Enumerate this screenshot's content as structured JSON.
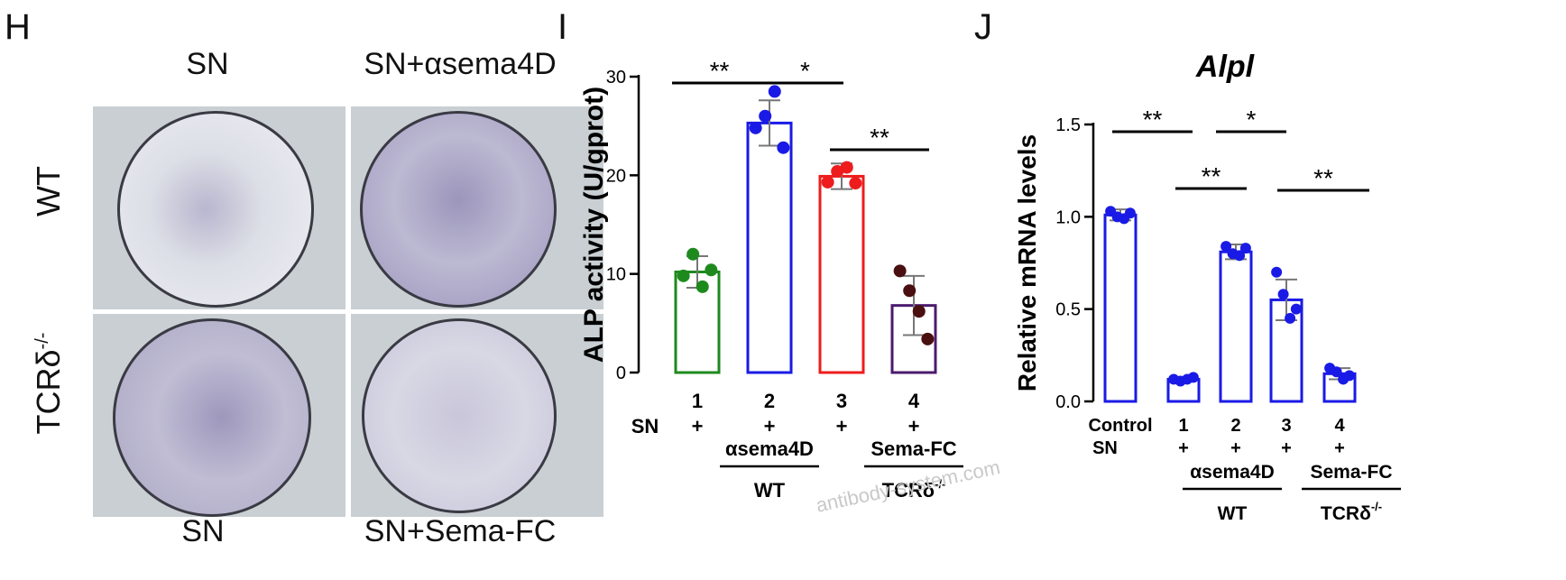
{
  "panel_h": {
    "letter": "H",
    "col_titles_top": [
      "SN",
      "SN+αsema4D"
    ],
    "col_titles_bottom": [
      "SN",
      "SN+Sema-FC"
    ],
    "row_labels": [
      "WT",
      "TCRδ",
      "-/-"
    ]
  },
  "panel_i": {
    "letter": "I"
  },
  "panel_j": {
    "letter": "J"
  },
  "watermark": "antibody-system.com",
  "colors": {
    "green": "#1e8a1e",
    "blue": "#1a1ae6",
    "red": "#ee1c1c",
    "brown": "#4a0f10",
    "purple": "#4b1a6e"
  },
  "chart_data": [
    {
      "id": "I",
      "type": "bar",
      "ylabel": "ALP activity (U/gprot)",
      "ylim": [
        0,
        30
      ],
      "yticks": [
        "0",
        "10",
        "20",
        "30"
      ],
      "categories": [
        "1",
        "2",
        "3",
        "4"
      ],
      "values": [
        10.2,
        25.3,
        19.9,
        6.8
      ],
      "errors": [
        1.6,
        2.3,
        1.3,
        3.0
      ],
      "points": [
        [
          9.8,
          12.0,
          8.7,
          10.4
        ],
        [
          24.8,
          26.0,
          28.5,
          22.8
        ],
        [
          19.3,
          20.4,
          20.8,
          19.2
        ],
        [
          10.3,
          8.3,
          6.2,
          3.4
        ]
      ],
      "bar_colors": [
        "#1e8a1e",
        "#1a1ae6",
        "#ee1c1c",
        "#4b1a6e"
      ],
      "point_colors": [
        "#1e8a1e",
        "#1a1ae6",
        "#ee1c1c",
        "#4a0f10"
      ],
      "sn_label": "SN",
      "sn_marks": [
        "+",
        "+",
        "+",
        "+"
      ],
      "group_labels": [
        {
          "top": "αsema4D",
          "bottom": "WT"
        },
        {
          "top": "Sema-FC",
          "bottom": "TCRδ",
          "sup": "-/-"
        }
      ],
      "significance": [
        {
          "from": 1,
          "to": 2,
          "label": "**"
        },
        {
          "from": 2,
          "to": 3,
          "label": "*"
        },
        {
          "from": 3,
          "to": 4,
          "label": "**"
        }
      ]
    },
    {
      "id": "J",
      "type": "bar",
      "title": "Alpl",
      "ylabel": "Relative mRNA levels",
      "ylim": [
        0,
        1.5
      ],
      "yticks": [
        "0.0",
        "0.5",
        "1.0",
        "1.5"
      ],
      "categories": [
        "Control",
        "1",
        "2",
        "3",
        "4"
      ],
      "values": [
        1.01,
        0.12,
        0.81,
        0.55,
        0.15
      ],
      "errors": [
        0.03,
        0.01,
        0.04,
        0.11,
        0.03
      ],
      "points": [
        [
          1.03,
          1.0,
          0.99,
          1.02
        ],
        [
          0.12,
          0.11,
          0.12,
          0.13
        ],
        [
          0.84,
          0.8,
          0.79,
          0.83
        ],
        [
          0.7,
          0.58,
          0.45,
          0.5
        ],
        [
          0.18,
          0.16,
          0.12,
          0.14
        ]
      ],
      "bar_color": "#1a1ae6",
      "sn_label": "SN",
      "sn_marks": [
        "",
        "+",
        "+",
        "+",
        "+"
      ],
      "group_labels": [
        {
          "top": "αsema4D",
          "bottom": "WT"
        },
        {
          "top": "Sema-FC",
          "bottom": "TCRδ",
          "sup": "-/-"
        }
      ],
      "significance": [
        {
          "from": 0,
          "to": 1,
          "label": "**"
        },
        {
          "from": 2,
          "to": 3,
          "label": "*"
        },
        {
          "from": 1,
          "to": 2,
          "label": "**"
        },
        {
          "from": 3,
          "to": 4,
          "label": "**"
        }
      ]
    }
  ]
}
